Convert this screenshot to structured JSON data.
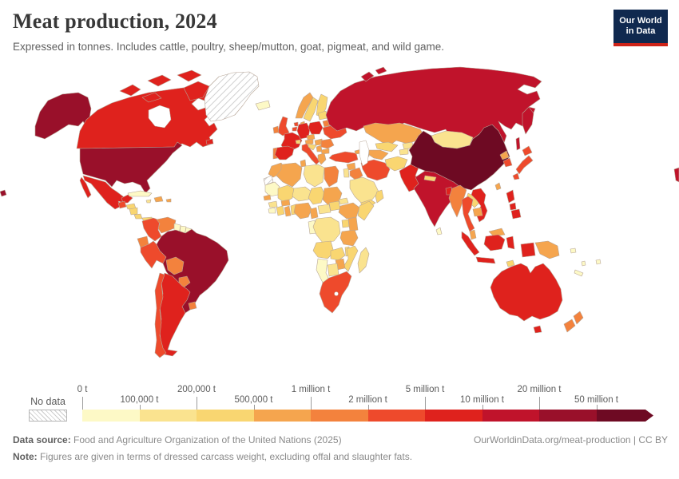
{
  "header": {
    "title": "Meat production, 2024",
    "subtitle": "Expressed in tonnes. Includes cattle, poultry, sheep/mutton, goat, pigmeat, and wild game.",
    "logo": {
      "line1": "Our World",
      "line2": "in Data",
      "bg": "#10294F",
      "strip": "#CE2318"
    }
  },
  "legend": {
    "no_data_label": "No data",
    "ticks": [
      {
        "label": "0 t",
        "pos": "top"
      },
      {
        "label": "100,000 t",
        "pos": "bot"
      },
      {
        "label": "200,000 t",
        "pos": "top"
      },
      {
        "label": "500,000 t",
        "pos": "bot"
      },
      {
        "label": "1 million t",
        "pos": "top"
      },
      {
        "label": "2 million t",
        "pos": "bot"
      },
      {
        "label": "5 million t",
        "pos": "top"
      },
      {
        "label": "10 million t",
        "pos": "bot"
      },
      {
        "label": "20 million t",
        "pos": "top"
      },
      {
        "label": "50 million t",
        "pos": "bot"
      }
    ]
  },
  "footer": {
    "source_prefix": "Data source:",
    "source_text": " Food and Agriculture Organization of the United Nations (2025)",
    "link_text": "OurWorldinData.org/meat-production | CC BY",
    "note_prefix": "Note:",
    "note_text": " Figures are given in terms of dressed carcass weight, excluding offal and slaughter fats."
  },
  "chart_data": {
    "type": "choropleth",
    "title": "Meat production, 2024",
    "unit": "tonnes",
    "palette": [
      "#FDF9C6",
      "#FAE38F",
      "#F9D671",
      "#F5A54E",
      "#F3823D",
      "#EE4A2C",
      "#DF221D",
      "#C0132B",
      "#99102A",
      "#6E0A23"
    ],
    "no_data_pattern": "diagonal-hatch",
    "border_color": "#b7a596",
    "level_labels": {
      "1": "0-100,000 t",
      "2": "100,000-200,000 t",
      "3": "200,000-500,000 t",
      "4": "500,000 t-1 million t",
      "5": "1-2 million t",
      "6": "2-5 million t",
      "7": "5-10 million t",
      "8": "10-20 million t",
      "9": "20-50 million t",
      "10": "50+ million t"
    },
    "countries": {
      "greenland": 0,
      "western-sahara": 0,
      "canada": 7,
      "canada-islands": 7,
      "alaska": 9,
      "usa": 9,
      "mexico": 7,
      "cuba": 1,
      "haiti-dr": 4,
      "jamaica": 2,
      "puerto-rico": 4,
      "guatemala": 6,
      "honduras": 3,
      "nicaragua": 3,
      "costa-rica": 3,
      "panama": 3,
      "colombia": 6,
      "venezuela": 5,
      "guyana": 1,
      "suriname": 1,
      "french-guiana": 1,
      "ecuador": 5,
      "peru": 6,
      "brazil": 9,
      "bolivia": 5,
      "paraguay": 5,
      "uruguay": 5,
      "argentina": 7,
      "chile": 6,
      "iceland": 1,
      "norway": 4,
      "sweden": 3,
      "finland": 3,
      "denmark": 4,
      "uk": 6,
      "ireland": 5,
      "france": 7,
      "spain": 7,
      "portugal": 5,
      "germany": 7,
      "netherlands": 6,
      "belgium": 6,
      "poland": 7,
      "czechia": 4,
      "austria": 4,
      "switzerland": 3,
      "italy": 6,
      "croatia": 3,
      "serbia": 4,
      "greece": 4,
      "bulgaria": 4,
      "hungary": 4,
      "romania": 5,
      "ukraine": 6,
      "belarus": 5,
      "baltics": 3,
      "russia": 8,
      "morocco": 4,
      "algeria": 4,
      "tunisia": 4,
      "libya": 2,
      "egypt": 5,
      "mauritania": 1,
      "mali": 3,
      "niger": 2,
      "chad": 3,
      "sudan": 4,
      "eritrea": 2,
      "senegal": 4,
      "guinea": 2,
      "sierra-leone-liberia": 1,
      "ivory-coast": 3,
      "ghana": 4,
      "togo-benin": 3,
      "burkina-faso": 4,
      "nigeria": 4,
      "cameroon": 4,
      "central-african-republic": 2,
      "south-sudan": 3,
      "ethiopia": 4,
      "somalia": 3,
      "kenya": 4,
      "uganda": 3,
      "drc": 2,
      "gabon-congo": 1,
      "tanzania": 4,
      "angola": 3,
      "zambia": 3,
      "malawi": 3,
      "mozambique": 3,
      "zimbabwe": 4,
      "botswana": 2,
      "namibia": 1,
      "south-africa": 6,
      "madagascar": 2,
      "turkey": 6,
      "syria": 4,
      "iraq": 5,
      "israel-jordan": 2,
      "saudi-arabia": 2,
      "yemen": 3,
      "oman": 3,
      "iran": 6,
      "georgia": 4,
      "azerbaijan": 4,
      "kazakhstan": 4,
      "uzbekistan": 3,
      "turkmenistan": 4,
      "kyrgyzstan": 2,
      "tajikistan": 2,
      "afghanistan": 3,
      "pakistan": 7,
      "india": 8,
      "sri-lanka": 1,
      "nepal": 3,
      "bangladesh": 7,
      "mongolia": 2,
      "china": 10,
      "north-korea": 4,
      "south-korea": 6,
      "japan": 6,
      "taiwan": 4,
      "myanmar": 5,
      "thailand": 6,
      "laos": 3,
      "cambodia": 4,
      "vietnam": 7,
      "malaysia": 4,
      "philippines": 7,
      "indonesia": 7,
      "timor": 3,
      "papua-new-guinea": 4,
      "solomon-islands": 1,
      "fiji": 1,
      "vanuatu": 1,
      "new-caledonia": 1,
      "australia": 7,
      "tasmania": 7,
      "new-zealand": 5,
      "map-fragment-west": 9,
      "map-fragment-east": 8
    }
  }
}
